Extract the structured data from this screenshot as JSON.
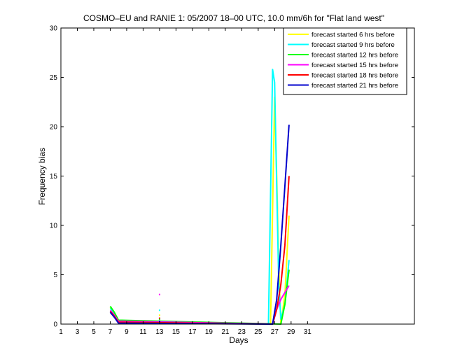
{
  "chart_data": {
    "type": "line",
    "title": "COSMO–EU and RANIE 1: 05/2007 18–00 UTC, 10.0 mm/6h for \"Flat land west\"",
    "xlabel": "Days",
    "ylabel": "Frequency bias",
    "xlim": [
      1,
      44
    ],
    "ylim": [
      0,
      30
    ],
    "xticks": [
      1,
      3,
      5,
      7,
      9,
      11,
      13,
      15,
      17,
      19,
      21,
      23,
      25,
      27,
      29,
      31
    ],
    "yticks": [
      0,
      5,
      10,
      15,
      20,
      25,
      30
    ],
    "grid": false,
    "legend_position": "top-right",
    "series": [
      {
        "name": "forecast started 6 hrs before",
        "color": "#ffff00",
        "points": [
          [
            7,
            1.7
          ],
          [
            7.5,
            1.0
          ],
          [
            8,
            0.2
          ],
          [
            26.5,
            0
          ],
          [
            27,
            23.0
          ],
          [
            27.25,
            15.0
          ],
          [
            27.5,
            6.0
          ],
          [
            27.75,
            0
          ],
          [
            28.25,
            3.0
          ],
          [
            28.75,
            11.0
          ]
        ],
        "dots": [
          [
            13,
            0.9
          ]
        ]
      },
      {
        "name": "forecast started 9 hrs before",
        "color": "#00ffff",
        "points": [
          [
            7,
            1.6
          ],
          [
            7.5,
            1.1
          ],
          [
            8,
            0.3
          ],
          [
            26.25,
            0
          ],
          [
            26.75,
            25.8
          ],
          [
            27.0,
            24.5
          ],
          [
            27.5,
            4.0
          ],
          [
            27.75,
            0.5
          ],
          [
            28.25,
            2.0
          ],
          [
            28.75,
            6.5
          ]
        ],
        "dots": [
          [
            13,
            1.4
          ],
          [
            20,
            0.1
          ]
        ]
      },
      {
        "name": "forecast started 12 hrs before",
        "color": "#00ff00",
        "points": [
          [
            7,
            1.8
          ],
          [
            7.5,
            1.2
          ],
          [
            8,
            0.4
          ],
          [
            27.75,
            0
          ],
          [
            28.25,
            2.0
          ],
          [
            28.75,
            5.5
          ]
        ],
        "dots": [
          [
            13,
            0.5
          ]
        ]
      },
      {
        "name": "forecast started 15 hrs before",
        "color": "#ff00ff",
        "points": [
          [
            7,
            1.4
          ],
          [
            7.5,
            0.9
          ],
          [
            8,
            0.3
          ],
          [
            26.75,
            0
          ],
          [
            27.25,
            1.5
          ],
          [
            27.75,
            2.5
          ],
          [
            28.25,
            3.2
          ],
          [
            28.75,
            3.9
          ]
        ],
        "dots": [
          [
            13,
            3.0
          ]
        ]
      },
      {
        "name": "forecast started 18 hrs before",
        "color": "#ff0000",
        "points": [
          [
            7,
            1.3
          ],
          [
            7.5,
            0.8
          ],
          [
            8,
            0.2
          ],
          [
            26.75,
            0
          ],
          [
            27.25,
            1.5
          ],
          [
            27.75,
            4.0
          ],
          [
            28.25,
            8.0
          ],
          [
            28.75,
            15.0
          ]
        ],
        "dots": [
          [
            13,
            0.6
          ]
        ]
      },
      {
        "name": "forecast started 21 hrs before",
        "color": "#0000cc",
        "points": [
          [
            7,
            1.2
          ],
          [
            7.5,
            0.7
          ],
          [
            8,
            0.1
          ],
          [
            26.75,
            0
          ],
          [
            27.25,
            2.5
          ],
          [
            27.75,
            8.0
          ],
          [
            28.25,
            14.0
          ],
          [
            28.75,
            20.2
          ]
        ],
        "dots": [
          [
            13,
            0.3
          ]
        ]
      }
    ]
  }
}
